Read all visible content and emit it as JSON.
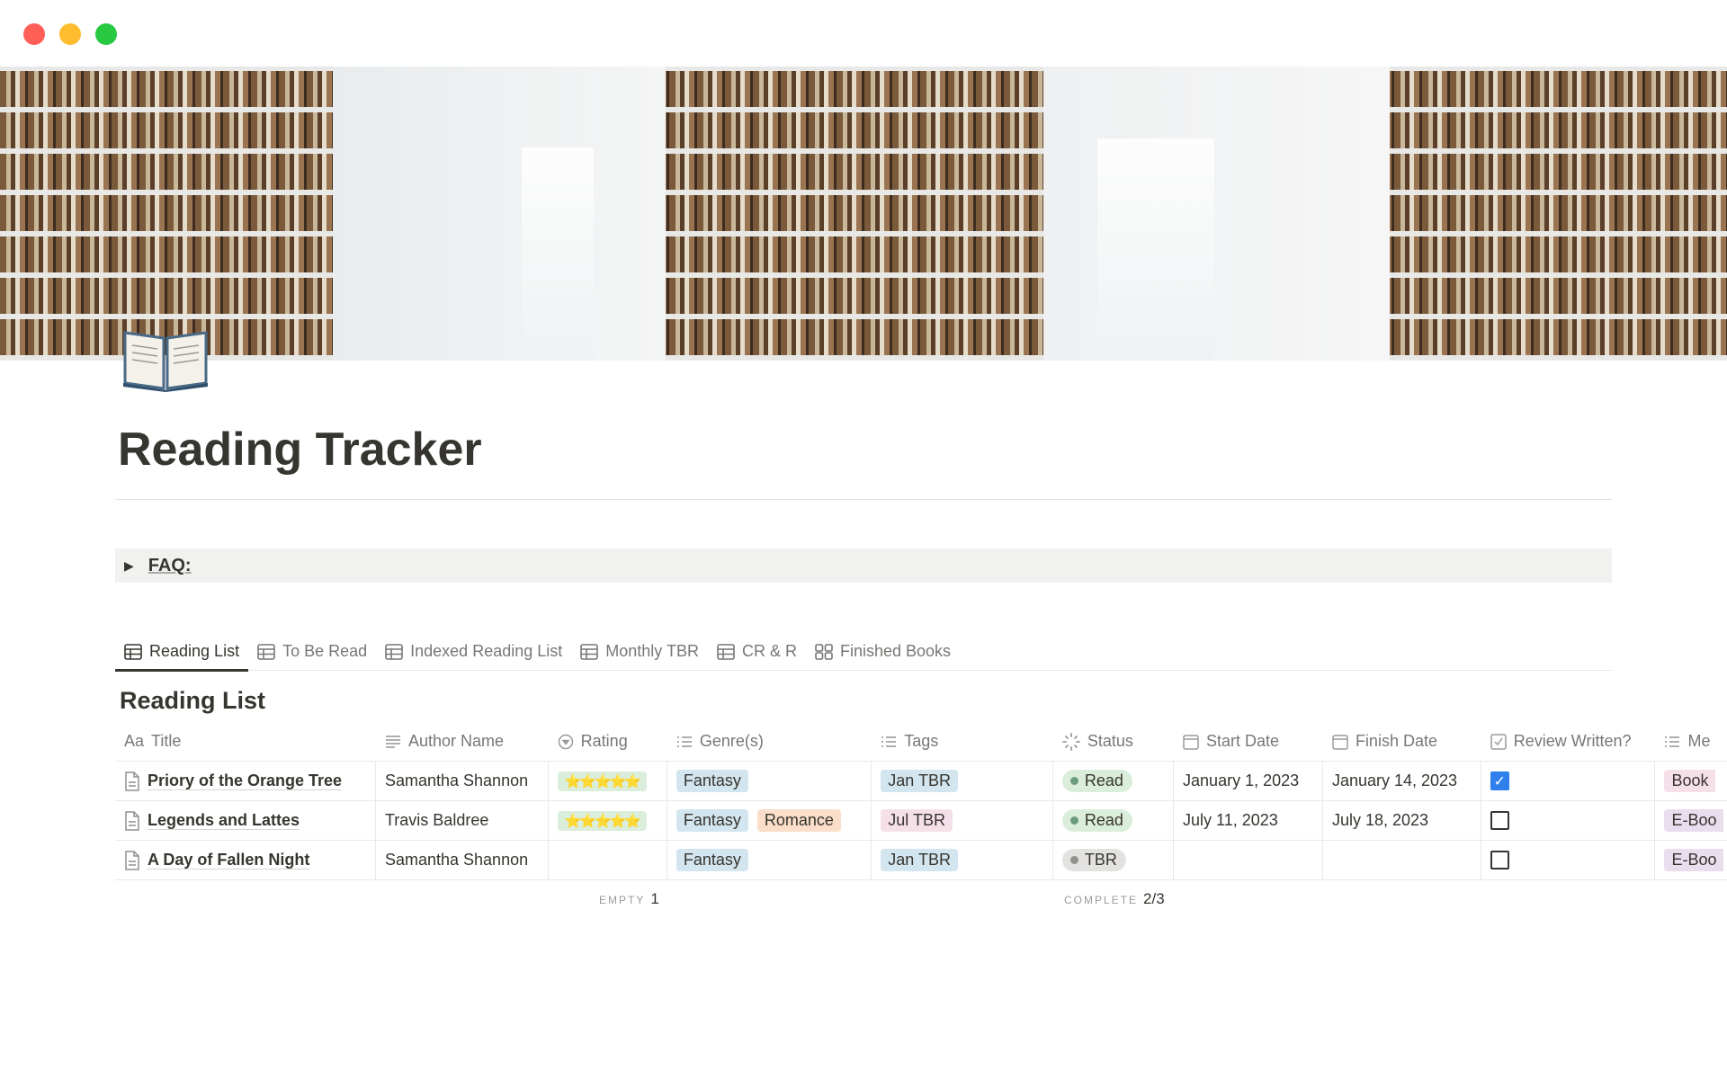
{
  "window": {
    "controls": [
      {
        "name": "close",
        "color": "#ff5f57"
      },
      {
        "name": "minimize",
        "color": "#febc2e"
      },
      {
        "name": "zoom",
        "color": "#28c840"
      }
    ]
  },
  "page": {
    "icon": "open-book-icon",
    "title": "Reading Tracker"
  },
  "faq": {
    "label": "FAQ:"
  },
  "tabs": [
    {
      "label": "Reading List",
      "icon": "table-icon",
      "active": true
    },
    {
      "label": "To Be Read",
      "icon": "table-icon"
    },
    {
      "label": "Indexed Reading List",
      "icon": "table-icon"
    },
    {
      "label": "Monthly TBR",
      "icon": "table-icon"
    },
    {
      "label": "CR & R",
      "icon": "table-icon"
    },
    {
      "label": "Finished Books",
      "icon": "gallery-icon"
    }
  ],
  "view": {
    "title": "Reading List"
  },
  "columns": [
    "Title",
    "Author Name",
    "Rating",
    "Genre(s)",
    "Tags",
    "Status",
    "Start Date",
    "Finish Date",
    "Review Written?",
    "Me"
  ],
  "column_icons": {
    "title": "Aa"
  },
  "rows": [
    {
      "title": "Priory of the Orange Tree",
      "author": "Samantha Shannon",
      "rating": "⭐⭐⭐⭐⭐",
      "genres": [
        {
          "label": "Fantasy",
          "color": "#d3e5ef"
        }
      ],
      "tag": {
        "label": "Jan TBR",
        "color": "#d3e5ef"
      },
      "status": {
        "label": "Read",
        "bg": "#dbeddb",
        "dot": "#6c9b7d"
      },
      "start": "January 1, 2023",
      "finish": "January 14, 2023",
      "review": true,
      "media": {
        "label": "Book",
        "color": "#f5e0e9"
      }
    },
    {
      "title": "Legends and Lattes",
      "author": "Travis Baldree",
      "rating": "⭐⭐⭐⭐⭐",
      "genres": [
        {
          "label": "Fantasy",
          "color": "#d3e5ef"
        },
        {
          "label": "Romance",
          "color": "#fadec9"
        }
      ],
      "tag": {
        "label": "Jul TBR",
        "color": "#f5e0e9"
      },
      "status": {
        "label": "Read",
        "bg": "#dbeddb",
        "dot": "#6c9b7d"
      },
      "start": "July 11, 2023",
      "finish": "July 18, 2023",
      "review": false,
      "media": {
        "label": "E-Boo",
        "color": "#e8deee"
      }
    },
    {
      "title": "A Day of Fallen Night",
      "author": "Samantha Shannon",
      "rating": "",
      "genres": [
        {
          "label": "Fantasy",
          "color": "#d3e5ef"
        }
      ],
      "tag": {
        "label": "Jan TBR",
        "color": "#d3e5ef"
      },
      "status": {
        "label": "TBR",
        "bg": "#e3e2e0",
        "dot": "#91918e"
      },
      "start": "",
      "finish": "",
      "review": false,
      "media": {
        "label": "E-Boo",
        "color": "#e8deee"
      }
    }
  ],
  "footer": {
    "rating_calc": "EMPTY",
    "rating_value": "1",
    "status_calc": "COMPLETE",
    "status_value": "2/3"
  }
}
